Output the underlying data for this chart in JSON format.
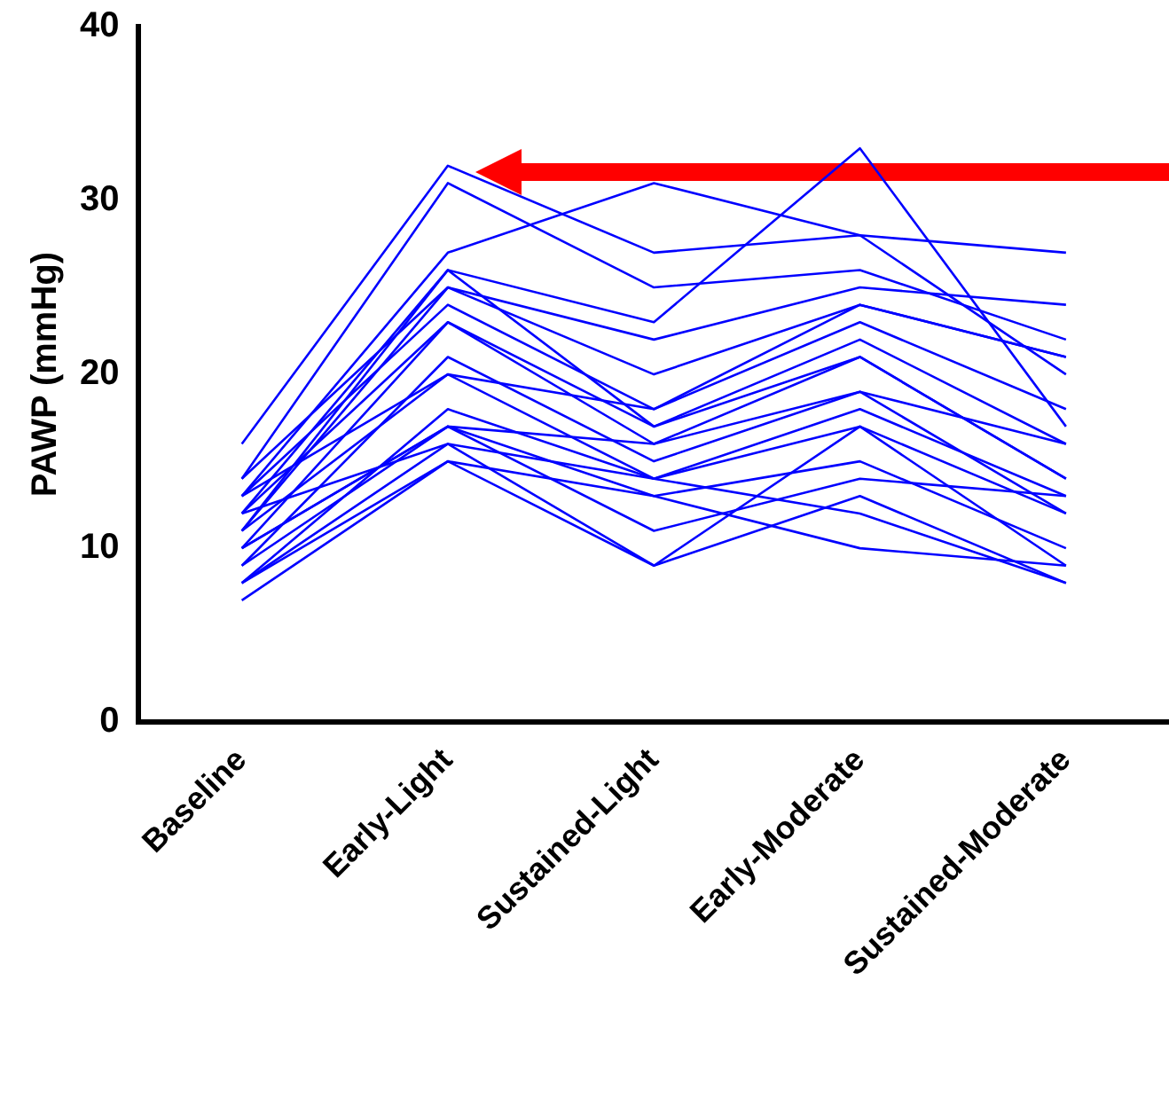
{
  "chart_data": {
    "type": "line",
    "ylabel": "PAWP (mmHg)",
    "categories": [
      "Baseline",
      "Early-Light",
      "Sustained-Light",
      "Early-Moderate",
      "Sustained-Moderate"
    ],
    "ylim": [
      0,
      40
    ],
    "yticks": [
      0,
      10,
      20,
      30,
      40
    ],
    "grid": false,
    "legend": false,
    "marker": "none",
    "line_style": "solid",
    "series": [
      {
        "color": "#0000ff",
        "values": [
          16,
          32,
          27,
          28,
          27
        ]
      },
      {
        "color": "#0000ff",
        "values": [
          14,
          31,
          25,
          26,
          22
        ]
      },
      {
        "color": "#0000ff",
        "values": [
          13,
          27,
          31,
          28,
          20
        ]
      },
      {
        "color": "#0000ff",
        "values": [
          12,
          26,
          23,
          33,
          17
        ]
      },
      {
        "color": "#0000ff",
        "values": [
          14,
          25,
          22,
          25,
          24
        ]
      },
      {
        "color": "#0000ff",
        "values": [
          11,
          25,
          20,
          24,
          21
        ]
      },
      {
        "color": "#0000ff",
        "values": [
          13,
          24,
          18,
          23,
          18
        ]
      },
      {
        "color": "#0000ff",
        "values": [
          10,
          23,
          17,
          22,
          16
        ]
      },
      {
        "color": "#0000ff",
        "values": [
          12,
          23,
          16,
          21,
          14
        ]
      },
      {
        "color": "#0000ff",
        "values": [
          9,
          21,
          15,
          19,
          12
        ]
      },
      {
        "color": "#0000ff",
        "values": [
          11,
          20,
          14,
          18,
          13
        ]
      },
      {
        "color": "#0000ff",
        "values": [
          8,
          18,
          14,
          17,
          12
        ]
      },
      {
        "color": "#0000ff",
        "values": [
          10,
          17,
          16,
          19,
          16
        ]
      },
      {
        "color": "#0000ff",
        "values": [
          9,
          17,
          13,
          15,
          10
        ]
      },
      {
        "color": "#0000ff",
        "values": [
          12,
          16,
          14,
          12,
          8
        ]
      },
      {
        "color": "#0000ff",
        "values": [
          7,
          15,
          9,
          17,
          9
        ]
      },
      {
        "color": "#0000ff",
        "values": [
          8,
          16,
          9,
          13,
          8
        ]
      },
      {
        "color": "#0000ff",
        "values": [
          10,
          17,
          11,
          14,
          13
        ]
      },
      {
        "color": "#0000ff",
        "values": [
          13,
          20,
          18,
          24,
          21
        ]
      },
      {
        "color": "#0000ff",
        "values": [
          8,
          15,
          13,
          10,
          9
        ]
      },
      {
        "color": "#0000ff",
        "values": [
          11,
          26,
          17,
          21,
          14
        ]
      }
    ]
  }
}
